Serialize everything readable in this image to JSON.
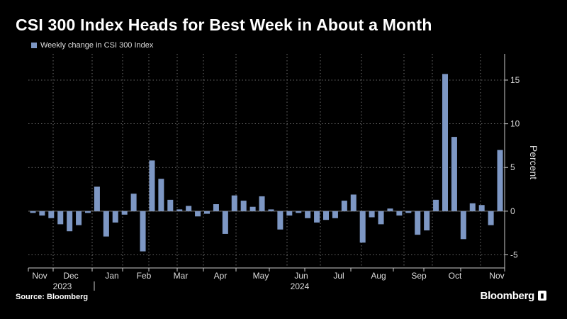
{
  "title": "CSI 300 Index Heads for Best Week in About a Month",
  "source": "Source: Bloomberg",
  "brand": "Bloomberg",
  "colors": {
    "bar": "#7d97c4",
    "background": "#000000",
    "grid": "#8a8a8a",
    "text": "#ffffff"
  },
  "chart_data": {
    "type": "bar",
    "legend": [
      "Weekly change in CSI 300 Index"
    ],
    "legend_placement": "top-left",
    "ylabel": "Percent",
    "ylim": [
      -6.5,
      18
    ],
    "yticks": [
      -5,
      0,
      5,
      10,
      15
    ],
    "grid": true,
    "x_month_labels": [
      "Nov",
      "Dec",
      "Jan",
      "Feb",
      "Mar",
      "Apr",
      "May",
      "Jun",
      "Jul",
      "Aug",
      "Sep",
      "Oct",
      "Nov"
    ],
    "x_year_labels": [
      "2023",
      "2024"
    ],
    "series": [
      {
        "values": [
          -0.2,
          -0.5,
          -0.8,
          -1.5,
          -2.3,
          -1.6,
          -0.2,
          2.8,
          -2.9,
          -1.3,
          -0.4,
          2.0,
          -4.6,
          5.8,
          3.7,
          1.3,
          0.2,
          0.6,
          -0.6,
          -0.3,
          0.8,
          -2.6,
          1.8,
          1.2,
          0.5,
          1.7,
          0.2,
          -2.1,
          -0.5,
          -0.2,
          -0.8,
          -1.3,
          -1.0,
          -0.8,
          1.2,
          1.9,
          -3.6,
          -0.7,
          -1.5,
          0.3,
          -0.5,
          -0.2,
          -2.7,
          -2.2,
          1.3,
          15.7,
          8.5,
          -3.2,
          0.9,
          0.7,
          -1.6,
          7.0
        ]
      }
    ]
  }
}
